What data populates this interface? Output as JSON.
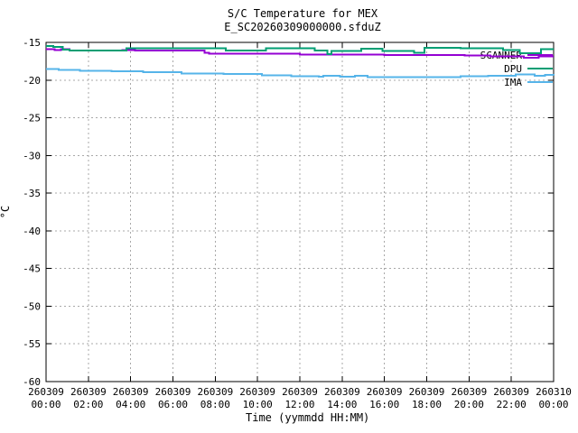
{
  "chart_data": {
    "type": "line",
    "title": "S/C Temperature for MEX",
    "subtitle": "E_SC20260309000000.sfduZ",
    "xlabel": "Time (yymmdd HH:MM)",
    "ylabel": "°C",
    "ylim": [
      -60,
      -15
    ],
    "x_range_hours": [
      0,
      24
    ],
    "grid": true,
    "legend_position": "top-right",
    "background": "#ffffff",
    "border_color": "#000000",
    "grid_color": "#a8a8a8",
    "y_ticks": [
      "-15",
      "-20",
      "-25",
      "-30",
      "-35",
      "-40",
      "-45",
      "-50",
      "-55",
      "-60"
    ],
    "y_tick_values": [
      -15,
      -20,
      -25,
      -30,
      -35,
      -40,
      -45,
      -50,
      -55,
      -60
    ],
    "x_ticks": [
      {
        "date": "260309",
        "time": "00:00"
      },
      {
        "date": "260309",
        "time": "02:00"
      },
      {
        "date": "260309",
        "time": "04:00"
      },
      {
        "date": "260309",
        "time": "06:00"
      },
      {
        "date": "260309",
        "time": "08:00"
      },
      {
        "date": "260309",
        "time": "10:00"
      },
      {
        "date": "260309",
        "time": "12:00"
      },
      {
        "date": "260309",
        "time": "14:00"
      },
      {
        "date": "260309",
        "time": "16:00"
      },
      {
        "date": "260309",
        "time": "18:00"
      },
      {
        "date": "260309",
        "time": "20:00"
      },
      {
        "date": "260309",
        "time": "22:00"
      },
      {
        "date": "260310",
        "time": "00:00"
      }
    ],
    "series": [
      {
        "name": "SCANNER",
        "color": "#9400d3",
        "mode": "steps",
        "points": [
          [
            0,
            -15.9
          ],
          [
            0.4,
            -16.0
          ],
          [
            0.7,
            -15.9
          ],
          [
            1.1,
            -16.05
          ],
          [
            3.6,
            -16.0
          ],
          [
            4.2,
            -16.05
          ],
          [
            7.5,
            -16.35
          ],
          [
            7.7,
            -16.5
          ],
          [
            12,
            -16.6
          ],
          [
            16,
            -16.7
          ],
          [
            19.8,
            -16.75
          ],
          [
            21,
            -16.85
          ],
          [
            22.6,
            -17.05
          ],
          [
            23.3,
            -16.85
          ],
          [
            24,
            -16.85
          ]
        ]
      },
      {
        "name": "DPU",
        "color": "#009e73",
        "mode": "steps",
        "points": [
          [
            0,
            -15.45
          ],
          [
            0.35,
            -15.6
          ],
          [
            0.8,
            -15.95
          ],
          [
            1.1,
            -16.1
          ],
          [
            3.8,
            -15.8
          ],
          [
            8.5,
            -16.1
          ],
          [
            10.4,
            -15.8
          ],
          [
            12.7,
            -16.1
          ],
          [
            13.3,
            -16.55
          ],
          [
            13.5,
            -16.15
          ],
          [
            14.9,
            -15.85
          ],
          [
            15.9,
            -16.15
          ],
          [
            17.4,
            -16.35
          ],
          [
            17.9,
            -15.7
          ],
          [
            19.6,
            -15.8
          ],
          [
            21.6,
            -16.0
          ],
          [
            22.4,
            -16.45
          ],
          [
            23.4,
            -15.9
          ],
          [
            24,
            -15.9
          ]
        ]
      },
      {
        "name": "IMA",
        "color": "#56b4e9",
        "mode": "steps",
        "points": [
          [
            0,
            -18.55
          ],
          [
            0.6,
            -18.65
          ],
          [
            1.6,
            -18.75
          ],
          [
            3.1,
            -18.85
          ],
          [
            4.6,
            -18.95
          ],
          [
            6.4,
            -19.1
          ],
          [
            8.4,
            -19.2
          ],
          [
            10.2,
            -19.35
          ],
          [
            11.6,
            -19.5
          ],
          [
            12.9,
            -19.55
          ],
          [
            13.1,
            -19.4
          ],
          [
            13.9,
            -19.55
          ],
          [
            14.6,
            -19.45
          ],
          [
            15.2,
            -19.6
          ],
          [
            19.6,
            -19.5
          ],
          [
            20.9,
            -19.45
          ],
          [
            22.2,
            -19.25
          ],
          [
            23.1,
            -19.45
          ],
          [
            23.6,
            -19.3
          ],
          [
            24,
            -19.35
          ]
        ]
      }
    ]
  }
}
